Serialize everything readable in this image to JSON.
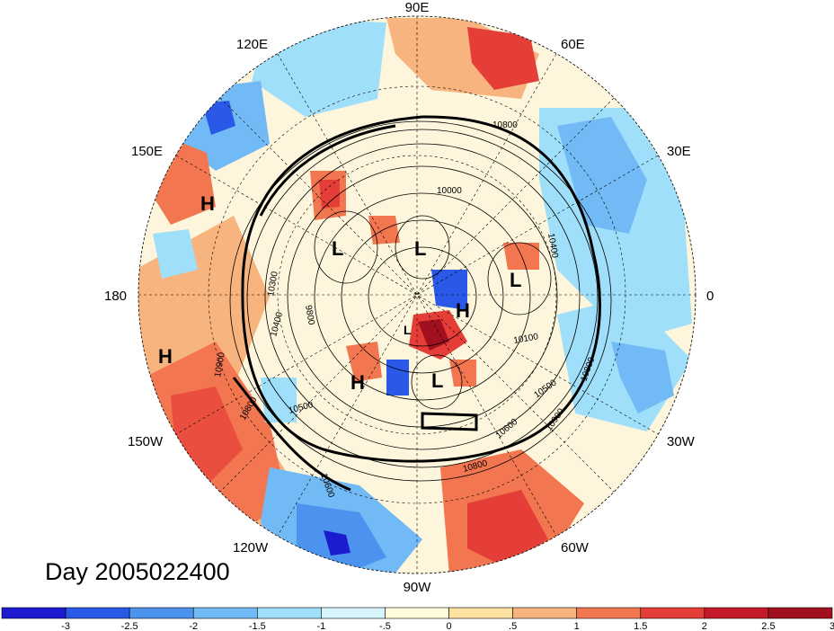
{
  "title": "Day 2005022400",
  "longitude_labels": [
    {
      "text": "90E"
    },
    {
      "text": "60E"
    },
    {
      "text": "30E"
    },
    {
      "text": "0"
    },
    {
      "text": "30W"
    },
    {
      "text": "60W"
    },
    {
      "text": "90W"
    },
    {
      "text": "120W"
    },
    {
      "text": "150W"
    },
    {
      "text": "180"
    },
    {
      "text": "150E"
    },
    {
      "text": "120E"
    }
  ],
  "pressure_centers": [
    {
      "kind": "H"
    },
    {
      "kind": "H"
    },
    {
      "kind": "L"
    },
    {
      "kind": "L"
    },
    {
      "kind": "L"
    },
    {
      "kind": "H"
    },
    {
      "kind": "L"
    },
    {
      "kind": "H"
    },
    {
      "kind": "L"
    }
  ],
  "contour_labels": [
    "10800",
    "10000",
    "10300",
    "9800",
    "10400",
    "10900",
    "10800",
    "10500",
    "10600",
    "10800",
    "10900",
    "10500",
    "10100",
    "10400",
    "10800",
    "10600"
  ],
  "colorbar": {
    "ticks": [
      "-3",
      "-2.5",
      "-2",
      "-1.5",
      "-1",
      "-.5",
      "0",
      ".5",
      "1",
      "1.5",
      "2",
      "2.5",
      "3"
    ],
    "colors": [
      "#1c1bd0",
      "#2a59e8",
      "#4b93ee",
      "#72baf5",
      "#a0dffa",
      "#d6f5fb",
      "#fffbdb",
      "#fde2a2",
      "#f8b47e",
      "#f2764f",
      "#e53d37",
      "#c5192a",
      "#a0101e"
    ]
  }
}
